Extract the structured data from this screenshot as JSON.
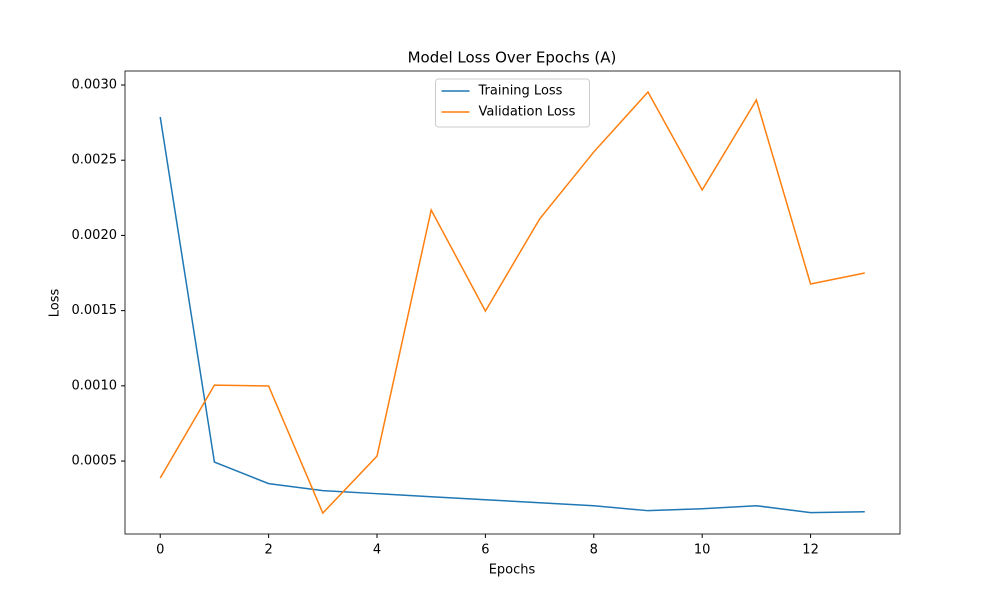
{
  "chart_data": {
    "type": "line",
    "title": "Model Loss Over Epochs (A)",
    "xlabel": "Epochs",
    "ylabel": "Loss",
    "x": [
      0,
      1,
      2,
      3,
      4,
      5,
      6,
      7,
      8,
      9,
      10,
      11,
      12,
      13
    ],
    "series": [
      {
        "name": "Training Loss",
        "color": "#1f77b4",
        "values": [
          0.002787,
          0.000493,
          0.00035,
          0.000303,
          0.000283,
          0.000263,
          0.000243,
          0.000223,
          0.000203,
          0.00017,
          0.000183,
          0.000203,
          0.000157,
          0.000163
        ]
      },
      {
        "name": "Validation Loss",
        "color": "#ff7f0e",
        "values": [
          0.000387,
          0.001005,
          0.000999,
          0.000154,
          0.000533,
          0.002169,
          0.001497,
          0.002109,
          0.002555,
          0.002953,
          0.002302,
          0.0029,
          0.001677,
          0.00175
        ]
      }
    ],
    "xlim": [
      -0.65,
      13.65
    ],
    "xticks": [
      0,
      2,
      4,
      6,
      8,
      10,
      12
    ],
    "ylim": [
      1.5e-05,
      0.003093
    ],
    "yticks": [
      {
        "value": 0.0005,
        "label": "0.0005"
      },
      {
        "value": 0.001,
        "label": "0.0010"
      },
      {
        "value": 0.0015,
        "label": "0.0015"
      },
      {
        "value": 0.002,
        "label": "0.0020"
      },
      {
        "value": 0.0025,
        "label": "0.0025"
      },
      {
        "value": 0.003,
        "label": "0.0030"
      }
    ],
    "legend": "upper center",
    "grid": false
  }
}
